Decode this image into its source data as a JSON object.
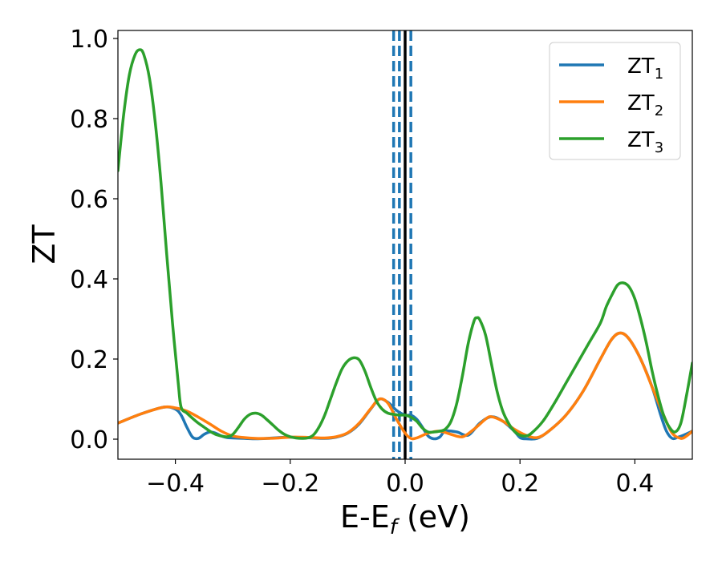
{
  "chart_data": {
    "type": "line",
    "xlabel": "E-E_f (eV)",
    "ylabel": "ZT",
    "xlim": [
      -0.5,
      0.5
    ],
    "ylim": [
      -0.05,
      1.02
    ],
    "xticks": [
      -0.4,
      -0.2,
      0.0,
      0.2,
      0.4
    ],
    "xtick_labels": [
      "−0.4",
      "−0.2",
      "0.0",
      "0.2",
      "0.4"
    ],
    "yticks": [
      0.0,
      0.2,
      0.4,
      0.6,
      0.8,
      1.0
    ],
    "ytick_labels": [
      "0.0",
      "0.2",
      "0.4",
      "0.6",
      "0.8",
      "1.0"
    ],
    "grid": false,
    "legend_position": "top-right",
    "colors": {
      "ZT1": "#1f77b4",
      "ZT2": "#ff7f0e",
      "ZT3": "#2ca02c",
      "fermi": "#000000",
      "dashed": "#1f77b4"
    },
    "vertical_lines": [
      {
        "x": 0.0,
        "style": "solid",
        "color": "#000000"
      },
      {
        "x": -0.02,
        "style": "dashed",
        "color": "#1f77b4"
      },
      {
        "x": -0.01,
        "style": "dashed",
        "color": "#1f77b4"
      },
      {
        "x": 0.01,
        "style": "dashed",
        "color": "#1f77b4"
      }
    ],
    "series": [
      {
        "name": "ZT_1",
        "legend_base": "ZT",
        "legend_sub": "1",
        "color": "#1f77b4",
        "points": [
          [
            -0.5,
            0.04
          ],
          [
            -0.46,
            0.063
          ],
          [
            -0.42,
            0.08
          ],
          [
            -0.4,
            0.075
          ],
          [
            -0.39,
            0.06
          ],
          [
            -0.38,
            0.03
          ],
          [
            -0.37,
            0.005
          ],
          [
            -0.36,
            0.002
          ],
          [
            -0.35,
            0.012
          ],
          [
            -0.34,
            0.018
          ],
          [
            -0.33,
            0.015
          ],
          [
            -0.32,
            0.008
          ],
          [
            -0.31,
            0.004
          ],
          [
            -0.3,
            0.003
          ],
          [
            -0.28,
            0.002
          ],
          [
            -0.26,
            0.001
          ],
          [
            -0.24,
            0.002
          ],
          [
            -0.22,
            0.004
          ],
          [
            -0.2,
            0.005
          ],
          [
            -0.18,
            0.004
          ],
          [
            -0.16,
            0.003
          ],
          [
            -0.14,
            0.002
          ],
          [
            -0.12,
            0.005
          ],
          [
            -0.1,
            0.015
          ],
          [
            -0.08,
            0.038
          ],
          [
            -0.06,
            0.075
          ],
          [
            -0.045,
            0.1
          ],
          [
            -0.03,
            0.092
          ],
          [
            -0.015,
            0.072
          ],
          [
            0.0,
            0.06
          ],
          [
            0.01,
            0.06
          ],
          [
            0.02,
            0.05
          ],
          [
            0.03,
            0.03
          ],
          [
            0.04,
            0.008
          ],
          [
            0.05,
            0.001
          ],
          [
            0.06,
            0.005
          ],
          [
            0.07,
            0.02
          ],
          [
            0.09,
            0.018
          ],
          [
            0.11,
            0.01
          ],
          [
            0.13,
            0.04
          ],
          [
            0.15,
            0.056
          ],
          [
            0.17,
            0.045
          ],
          [
            0.19,
            0.02
          ],
          [
            0.2,
            0.004
          ],
          [
            0.21,
            0.001
          ],
          [
            0.23,
            0.002
          ],
          [
            0.25,
            0.02
          ],
          [
            0.28,
            0.06
          ],
          [
            0.31,
            0.12
          ],
          [
            0.34,
            0.2
          ],
          [
            0.36,
            0.25
          ],
          [
            0.375,
            0.265
          ],
          [
            0.39,
            0.25
          ],
          [
            0.41,
            0.2
          ],
          [
            0.43,
            0.13
          ],
          [
            0.445,
            0.06
          ],
          [
            0.455,
            0.02
          ],
          [
            0.465,
            0.002
          ],
          [
            0.475,
            0.005
          ],
          [
            0.485,
            0.01
          ],
          [
            0.5,
            0.02
          ]
        ]
      },
      {
        "name": "ZT_2",
        "legend_base": "ZT",
        "legend_sub": "2",
        "color": "#ff7f0e",
        "points": [
          [
            -0.5,
            0.04
          ],
          [
            -0.46,
            0.063
          ],
          [
            -0.42,
            0.08
          ],
          [
            -0.4,
            0.078
          ],
          [
            -0.38,
            0.07
          ],
          [
            -0.36,
            0.055
          ],
          [
            -0.34,
            0.038
          ],
          [
            -0.32,
            0.02
          ],
          [
            -0.3,
            0.008
          ],
          [
            -0.28,
            0.004
          ],
          [
            -0.26,
            0.002
          ],
          [
            -0.24,
            0.002
          ],
          [
            -0.22,
            0.003
          ],
          [
            -0.2,
            0.005
          ],
          [
            -0.18,
            0.005
          ],
          [
            -0.16,
            0.004
          ],
          [
            -0.14,
            0.003
          ],
          [
            -0.12,
            0.006
          ],
          [
            -0.1,
            0.016
          ],
          [
            -0.08,
            0.04
          ],
          [
            -0.06,
            0.076
          ],
          [
            -0.045,
            0.1
          ],
          [
            -0.03,
            0.09
          ],
          [
            -0.015,
            0.05
          ],
          [
            0.0,
            0.015
          ],
          [
            0.01,
            0.002
          ],
          [
            0.02,
            0.003
          ],
          [
            0.04,
            0.015
          ],
          [
            0.06,
            0.02
          ],
          [
            0.08,
            0.012
          ],
          [
            0.1,
            0.006
          ],
          [
            0.12,
            0.025
          ],
          [
            0.14,
            0.05
          ],
          [
            0.15,
            0.056
          ],
          [
            0.17,
            0.045
          ],
          [
            0.19,
            0.025
          ],
          [
            0.21,
            0.01
          ],
          [
            0.23,
            0.004
          ],
          [
            0.25,
            0.02
          ],
          [
            0.28,
            0.06
          ],
          [
            0.31,
            0.12
          ],
          [
            0.34,
            0.2
          ],
          [
            0.36,
            0.25
          ],
          [
            0.375,
            0.265
          ],
          [
            0.39,
            0.25
          ],
          [
            0.41,
            0.2
          ],
          [
            0.43,
            0.13
          ],
          [
            0.45,
            0.06
          ],
          [
            0.465,
            0.015
          ],
          [
            0.48,
            0.002
          ],
          [
            0.49,
            0.008
          ],
          [
            0.5,
            0.02
          ]
        ]
      },
      {
        "name": "ZT_3",
        "legend_base": "ZT",
        "legend_sub": "3",
        "color": "#2ca02c",
        "points": [
          [
            -0.5,
            0.67
          ],
          [
            -0.49,
            0.81
          ],
          [
            -0.48,
            0.91
          ],
          [
            -0.47,
            0.96
          ],
          [
            -0.462,
            0.972
          ],
          [
            -0.455,
            0.96
          ],
          [
            -0.445,
            0.9
          ],
          [
            -0.435,
            0.79
          ],
          [
            -0.425,
            0.64
          ],
          [
            -0.415,
            0.46
          ],
          [
            -0.405,
            0.29
          ],
          [
            -0.395,
            0.14
          ],
          [
            -0.39,
            0.08
          ],
          [
            -0.38,
            0.065
          ],
          [
            -0.37,
            0.052
          ],
          [
            -0.36,
            0.04
          ],
          [
            -0.35,
            0.03
          ],
          [
            -0.34,
            0.02
          ],
          [
            -0.33,
            0.012
          ],
          [
            -0.32,
            0.008
          ],
          [
            -0.31,
            0.006
          ],
          [
            -0.3,
            0.012
          ],
          [
            -0.29,
            0.03
          ],
          [
            -0.28,
            0.05
          ],
          [
            -0.27,
            0.062
          ],
          [
            -0.26,
            0.065
          ],
          [
            -0.25,
            0.06
          ],
          [
            -0.24,
            0.048
          ],
          [
            -0.23,
            0.035
          ],
          [
            -0.22,
            0.022
          ],
          [
            -0.21,
            0.012
          ],
          [
            -0.2,
            0.006
          ],
          [
            -0.19,
            0.003
          ],
          [
            -0.18,
            0.002
          ],
          [
            -0.17,
            0.003
          ],
          [
            -0.16,
            0.01
          ],
          [
            -0.15,
            0.03
          ],
          [
            -0.14,
            0.06
          ],
          [
            -0.13,
            0.1
          ],
          [
            -0.12,
            0.14
          ],
          [
            -0.11,
            0.175
          ],
          [
            -0.1,
            0.195
          ],
          [
            -0.09,
            0.203
          ],
          [
            -0.08,
            0.198
          ],
          [
            -0.07,
            0.17
          ],
          [
            -0.06,
            0.13
          ],
          [
            -0.05,
            0.095
          ],
          [
            -0.04,
            0.075
          ],
          [
            -0.03,
            0.065
          ],
          [
            -0.02,
            0.062
          ],
          [
            -0.01,
            0.06
          ],
          [
            0.0,
            0.06
          ],
          [
            0.01,
            0.055
          ],
          [
            0.02,
            0.045
          ],
          [
            0.03,
            0.028
          ],
          [
            0.04,
            0.018
          ],
          [
            0.05,
            0.018
          ],
          [
            0.06,
            0.02
          ],
          [
            0.07,
            0.025
          ],
          [
            0.08,
            0.045
          ],
          [
            0.09,
            0.09
          ],
          [
            0.1,
            0.16
          ],
          [
            0.11,
            0.24
          ],
          [
            0.12,
            0.295
          ],
          [
            0.125,
            0.303
          ],
          [
            0.13,
            0.298
          ],
          [
            0.14,
            0.26
          ],
          [
            0.15,
            0.19
          ],
          [
            0.16,
            0.12
          ],
          [
            0.17,
            0.07
          ],
          [
            0.18,
            0.04
          ],
          [
            0.19,
            0.02
          ],
          [
            0.2,
            0.01
          ],
          [
            0.21,
            0.008
          ],
          [
            0.22,
            0.015
          ],
          [
            0.24,
            0.045
          ],
          [
            0.26,
            0.09
          ],
          [
            0.28,
            0.14
          ],
          [
            0.3,
            0.19
          ],
          [
            0.32,
            0.24
          ],
          [
            0.34,
            0.29
          ],
          [
            0.35,
            0.33
          ],
          [
            0.36,
            0.36
          ],
          [
            0.37,
            0.385
          ],
          [
            0.38,
            0.39
          ],
          [
            0.39,
            0.38
          ],
          [
            0.4,
            0.35
          ],
          [
            0.41,
            0.3
          ],
          [
            0.42,
            0.24
          ],
          [
            0.43,
            0.17
          ],
          [
            0.44,
            0.11
          ],
          [
            0.45,
            0.06
          ],
          [
            0.46,
            0.03
          ],
          [
            0.47,
            0.018
          ],
          [
            0.48,
            0.04
          ],
          [
            0.49,
            0.11
          ],
          [
            0.5,
            0.19
          ]
        ]
      }
    ]
  }
}
